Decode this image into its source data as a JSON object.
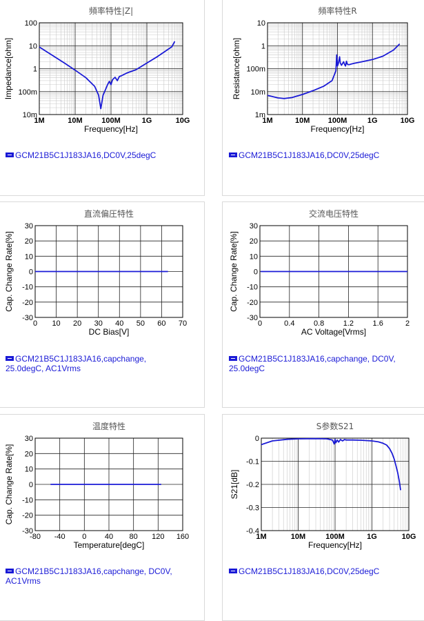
{
  "chart_data": [
    {
      "type": "line",
      "title": "頻率特性|Z|",
      "xlabel": "Frequency[Hz]",
      "ylabel": "Impedance[ohm]",
      "xscale": "log",
      "yscale": "log",
      "xlim": [
        1000000,
        10000000000
      ],
      "ylim": [
        0.01,
        100
      ],
      "xticks": [
        {
          "v": 1000000,
          "label": "1M"
        },
        {
          "v": 10000000,
          "label": "10M"
        },
        {
          "v": 100000000,
          "label": "100M"
        },
        {
          "v": 1000000000,
          "label": "1G"
        },
        {
          "v": 10000000000,
          "label": "10G"
        }
      ],
      "yticks": [
        {
          "v": 100,
          "label": "100"
        },
        {
          "v": 10,
          "label": "10"
        },
        {
          "v": 1,
          "label": "1"
        },
        {
          "v": 0.1,
          "label": "100m"
        },
        {
          "v": 0.01,
          "label": "10m"
        }
      ],
      "legend": "GCM21B5C1J183JA16,DC0V,25degC",
      "series": [
        {
          "x": [
            1000000,
            2000000,
            5000000,
            10000000,
            20000000,
            35000000,
            45000000,
            52000000,
            60000000,
            70000000,
            80000000,
            90000000,
            100000000,
            110000000,
            130000000,
            150000000,
            170000000,
            200000000,
            250000000,
            300000000,
            500000000,
            1000000000,
            2000000000,
            5000000000,
            6000000000
          ],
          "y": [
            8.8,
            4.4,
            1.77,
            0.86,
            0.4,
            0.17,
            0.07,
            0.018,
            0.07,
            0.12,
            0.2,
            0.28,
            0.2,
            0.33,
            0.42,
            0.3,
            0.45,
            0.5,
            0.6,
            0.68,
            0.9,
            1.75,
            3.4,
            9.0,
            15.5
          ]
        }
      ]
    },
    {
      "type": "line",
      "title": "頻率特性R",
      "xlabel": "Frequency[Hz]",
      "ylabel": "Resistance[ohm]",
      "xscale": "log",
      "yscale": "log",
      "xlim": [
        1000000,
        10000000000
      ],
      "ylim": [
        0.001,
        10
      ],
      "xticks": [
        {
          "v": 1000000,
          "label": "1M"
        },
        {
          "v": 10000000,
          "label": "10M"
        },
        {
          "v": 100000000,
          "label": "100M"
        },
        {
          "v": 1000000000,
          "label": "1G"
        },
        {
          "v": 10000000000,
          "label": "10G"
        }
      ],
      "yticks": [
        {
          "v": 10,
          "label": "10"
        },
        {
          "v": 1,
          "label": "1"
        },
        {
          "v": 0.1,
          "label": "100m"
        },
        {
          "v": 0.01,
          "label": "10m"
        },
        {
          "v": 0.001,
          "label": "1m"
        }
      ],
      "legend": "GCM21B5C1J183JA16,DC0V,25degC",
      "series": [
        {
          "x": [
            1000000,
            2000000,
            3000000,
            5000000,
            10000000,
            20000000,
            40000000,
            70000000,
            90000000,
            95000000,
            100000000,
            105000000,
            115000000,
            120000000,
            130000000,
            150000000,
            160000000,
            170000000,
            180000000,
            190000000,
            200000000,
            220000000,
            250000000,
            300000000,
            500000000,
            1000000000,
            2000000000,
            4000000000,
            6000000000
          ],
          "y": [
            0.0068,
            0.0053,
            0.005,
            0.0055,
            0.0075,
            0.011,
            0.017,
            0.03,
            0.08,
            0.4,
            0.13,
            0.16,
            0.33,
            0.18,
            0.14,
            0.2,
            0.15,
            0.13,
            0.21,
            0.16,
            0.15,
            0.15,
            0.16,
            0.17,
            0.2,
            0.25,
            0.35,
            0.65,
            1.2
          ]
        }
      ]
    },
    {
      "type": "line",
      "title": "直流偏圧特性",
      "xlabel": "DC Bias[V]",
      "ylabel": "Cap. Change Rate[%]",
      "xlim": [
        0,
        70
      ],
      "ylim": [
        -30,
        30
      ],
      "xticks": [
        {
          "v": 0,
          "label": "0"
        },
        {
          "v": 10,
          "label": "10"
        },
        {
          "v": 20,
          "label": "20"
        },
        {
          "v": 30,
          "label": "30"
        },
        {
          "v": 40,
          "label": "40"
        },
        {
          "v": 50,
          "label": "50"
        },
        {
          "v": 60,
          "label": "60"
        },
        {
          "v": 70,
          "label": "70"
        }
      ],
      "yticks": [
        {
          "v": 30,
          "label": "30"
        },
        {
          "v": 20,
          "label": "20"
        },
        {
          "v": 10,
          "label": "10"
        },
        {
          "v": 0,
          "label": "0"
        },
        {
          "v": -10,
          "label": "-10"
        },
        {
          "v": -20,
          "label": "-20"
        },
        {
          "v": -30,
          "label": "-30"
        }
      ],
      "legend": "GCM21B5C1J183JA16,capchange,\n25.0degC, AC1Vrms",
      "series": [
        {
          "x": [
            0,
            63
          ],
          "y": [
            0,
            0
          ]
        }
      ]
    },
    {
      "type": "line",
      "title": "交流电压特性",
      "xlabel": "AC Voltage[Vrms]",
      "ylabel": "Cap. Change Rate[%]",
      "xlim": [
        0,
        2
      ],
      "ylim": [
        -30,
        30
      ],
      "xticks": [
        {
          "v": 0,
          "label": "0"
        },
        {
          "v": 0.4,
          "label": "0.4"
        },
        {
          "v": 0.8,
          "label": "0.8"
        },
        {
          "v": 1.2,
          "label": "1.2"
        },
        {
          "v": 1.6,
          "label": "1.6"
        },
        {
          "v": 2,
          "label": "2"
        }
      ],
      "yticks": [
        {
          "v": 30,
          "label": "30"
        },
        {
          "v": 20,
          "label": "20"
        },
        {
          "v": 10,
          "label": "10"
        },
        {
          "v": 0,
          "label": "0"
        },
        {
          "v": -10,
          "label": "-10"
        },
        {
          "v": -20,
          "label": "-20"
        },
        {
          "v": -30,
          "label": "-30"
        }
      ],
      "legend": "GCM21B5C1J183JA16,capchange, DC0V,\n25.0degC",
      "series": [
        {
          "x": [
            0.01,
            2
          ],
          "y": [
            0,
            0
          ]
        }
      ]
    },
    {
      "type": "line",
      "title": "温度特性",
      "xlabel": "Temperature[degC]",
      "ylabel": "Cap. Change Rate[%]",
      "xlim": [
        -80,
        160
      ],
      "ylim": [
        -30,
        30
      ],
      "xticks": [
        {
          "v": -80,
          "label": "-80"
        },
        {
          "v": -40,
          "label": "-40"
        },
        {
          "v": 0,
          "label": "0"
        },
        {
          "v": 40,
          "label": "40"
        },
        {
          "v": 80,
          "label": "80"
        },
        {
          "v": 120,
          "label": "120"
        },
        {
          "v": 160,
          "label": "160"
        }
      ],
      "yticks": [
        {
          "v": 30,
          "label": "30"
        },
        {
          "v": 20,
          "label": "20"
        },
        {
          "v": 10,
          "label": "10"
        },
        {
          "v": 0,
          "label": "0"
        },
        {
          "v": -10,
          "label": "-10"
        },
        {
          "v": -20,
          "label": "-20"
        },
        {
          "v": -30,
          "label": "-30"
        }
      ],
      "legend": "GCM21B5C1J183JA16,capchange, DC0V,\nAC1Vrms",
      "series": [
        {
          "x": [
            -55,
            125
          ],
          "y": [
            0,
            0
          ]
        }
      ]
    },
    {
      "type": "line",
      "title": "S参数S21",
      "xlabel": "Frequency[Hz]",
      "ylabel": "S21[dB]",
      "xscale": "log",
      "xlim": [
        1000000,
        10000000000
      ],
      "ylim": [
        -0.4,
        0
      ],
      "xticks": [
        {
          "v": 1000000,
          "label": "1M"
        },
        {
          "v": 10000000,
          "label": "10M"
        },
        {
          "v": 100000000,
          "label": "100M"
        },
        {
          "v": 1000000000,
          "label": "1G"
        },
        {
          "v": 10000000000,
          "label": "10G"
        }
      ],
      "yticks": [
        {
          "v": 0,
          "label": "0"
        },
        {
          "v": -0.1,
          "label": "-0.1"
        },
        {
          "v": -0.2,
          "label": "-0.2"
        },
        {
          "v": -0.3,
          "label": "-0.3"
        },
        {
          "v": -0.4,
          "label": "-0.4"
        }
      ],
      "legend": "GCM21B5C1J183JA16,DC0V,25degC",
      "series": [
        {
          "x": [
            1000000,
            2000000,
            5000000,
            10000000,
            30000000,
            60000000,
            85000000,
            95000000,
            100000000,
            105000000,
            115000000,
            125000000,
            140000000,
            160000000,
            180000000,
            200000000,
            300000000,
            500000000,
            1000000000,
            1500000000,
            2000000000,
            2500000000,
            3000000000,
            3500000000,
            4000000000,
            4500000000,
            5000000000,
            5500000000,
            6000000000
          ],
          "y": [
            -0.028,
            -0.012,
            -0.005,
            -0.003,
            -0.002,
            -0.003,
            -0.008,
            -0.025,
            -0.005,
            -0.02,
            -0.008,
            -0.017,
            -0.006,
            -0.012,
            -0.006,
            -0.008,
            -0.008,
            -0.009,
            -0.012,
            -0.016,
            -0.022,
            -0.03,
            -0.045,
            -0.065,
            -0.09,
            -0.12,
            -0.15,
            -0.185,
            -0.225
          ]
        }
      ]
    }
  ]
}
